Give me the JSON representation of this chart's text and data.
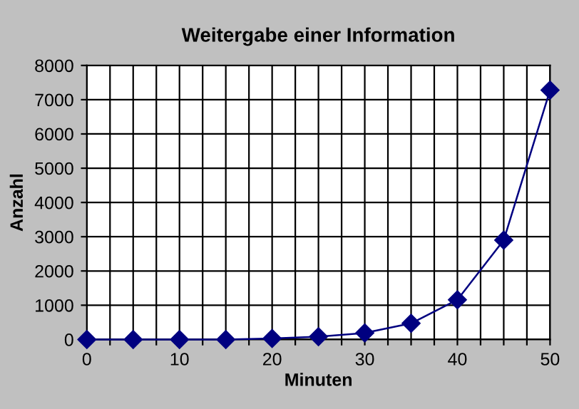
{
  "chart_data": {
    "type": "line",
    "title": "Weitergabe einer Information",
    "xlabel": "Minuten",
    "ylabel": "Anzahl",
    "x": [
      0,
      5,
      10,
      15,
      20,
      25,
      30,
      35,
      40,
      45,
      50
    ],
    "series": [
      {
        "color": "#000080",
        "values": [
          0,
          0,
          0,
          0,
          30,
          80,
          190,
          470,
          1160,
          2900,
          7280
        ]
      }
    ],
    "xlim": [
      0,
      50
    ],
    "xticks": [
      0,
      {
        "value": 2.5,
        "label": null
      },
      {
        "value": 5,
        "label": null
      },
      {
        "value": 7.5,
        "label": null
      },
      10,
      {
        "value": 12.5,
        "label": null
      },
      {
        "value": 15,
        "label": null
      },
      {
        "value": 17.5,
        "label": null
      },
      20,
      {
        "value": 22.5,
        "label": null
      },
      {
        "value": 25,
        "label": null
      },
      {
        "value": 27.5,
        "label": null
      },
      30,
      {
        "value": 32.5,
        "label": null
      },
      {
        "value": 35,
        "label": null
      },
      {
        "value": 37.5,
        "label": null
      },
      40,
      {
        "value": 42.5,
        "label": null
      },
      {
        "value": 45,
        "label": null
      },
      {
        "value": 47.5,
        "label": null
      },
      50
    ],
    "ylim": [
      0,
      8000
    ],
    "yticks": [
      0,
      1000,
      2000,
      3000,
      4000,
      5000,
      6000,
      7000,
      8000
    ],
    "grid": true,
    "marker": "diamond",
    "line_style": "solid"
  }
}
